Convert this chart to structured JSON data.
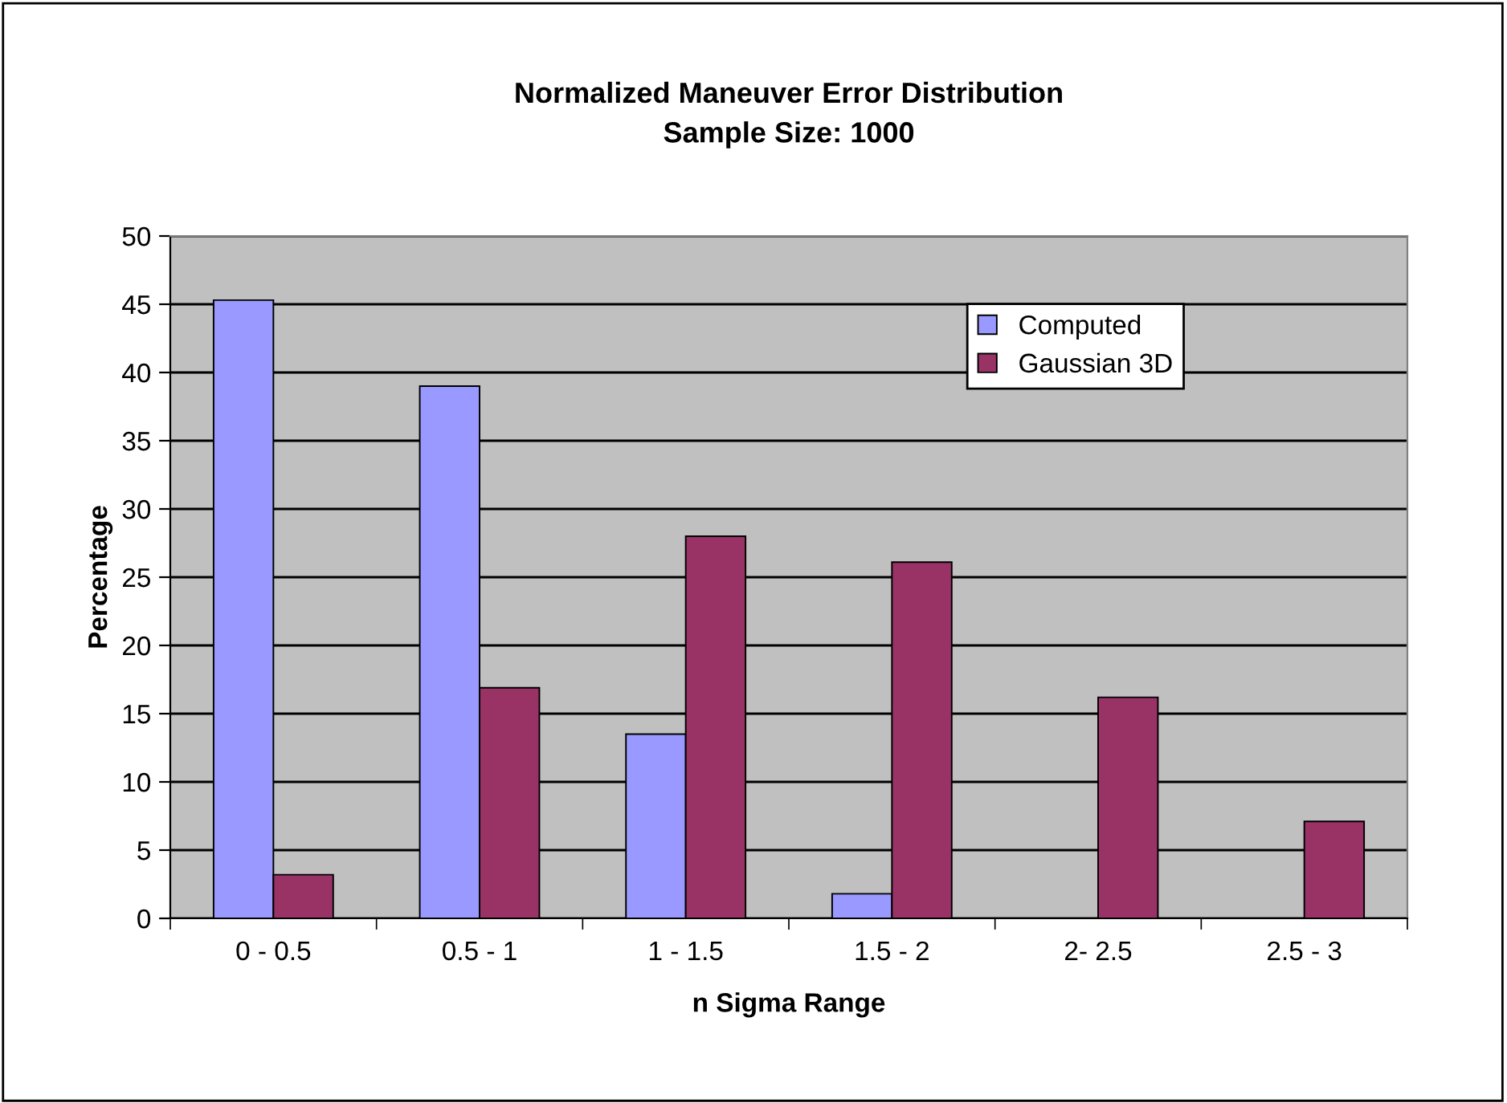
{
  "chart_data": {
    "type": "bar",
    "title": "Normalized Maneuver Error Distribution\nSample Size: 1000",
    "xlabel": "n Sigma Range",
    "ylabel": "Percentage",
    "categories": [
      "0 - 0.5",
      "0.5 - 1",
      "1 - 1.5",
      "1.5 - 2",
      "2- 2.5",
      "2.5 - 3"
    ],
    "series": [
      {
        "name": "Computed",
        "color": "#9999ff",
        "values": [
          45.3,
          39.0,
          13.5,
          1.8,
          0,
          0
        ]
      },
      {
        "name": "Gaussian 3D",
        "color": "#993366",
        "values": [
          3.2,
          16.9,
          28.0,
          26.1,
          16.2,
          7.1
        ]
      }
    ],
    "ylim": [
      0,
      50
    ],
    "yticks": [
      0,
      5,
      10,
      15,
      20,
      25,
      30,
      35,
      40,
      45,
      50
    ],
    "grid": "y",
    "legend": "top right"
  }
}
